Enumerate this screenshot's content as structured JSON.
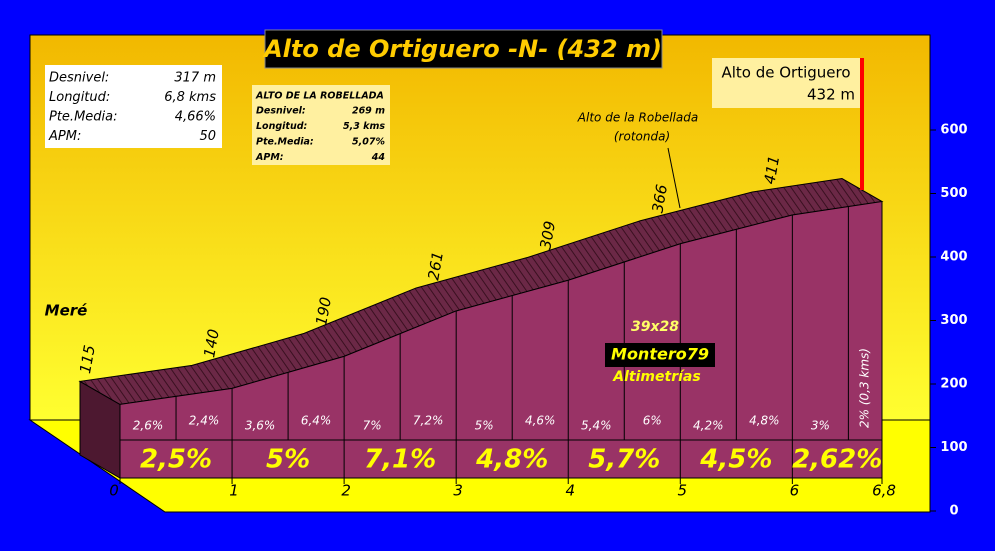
{
  "chart_data": {
    "type": "profile",
    "title": "Alto de Ortiguero -N- (432 m)",
    "x": [
      0,
      1,
      2,
      3,
      4,
      5,
      6,
      6.8
    ],
    "values": [
      115,
      140,
      190,
      261,
      309,
      366,
      411,
      432
    ],
    "value_labels": [
      "115",
      "140",
      "190",
      "261",
      "309",
      "366",
      "411",
      "432 m"
    ],
    "xlim": [
      0,
      6.8
    ],
    "xticks": [
      0,
      1,
      2,
      3,
      4,
      5,
      6,
      {
        "value": 6.8,
        "label": "6,8"
      }
    ],
    "ylim": [
      0,
      600
    ],
    "yticks": [
      0,
      100,
      200,
      300,
      400,
      500,
      600
    ],
    "colors": {
      "face": "#993366",
      "top": "#6b2846",
      "side": "#4d1830",
      "summit_line": "#ff0000"
    },
    "summit_label": "Alto de Ortiguero",
    "segment_gradients": {
      "edges": [
        0,
        0.5,
        1,
        1.5,
        2,
        2.5,
        3,
        3.5,
        4,
        4.5,
        5,
        5.5,
        6,
        6.5,
        6.8
      ],
      "values": [
        2.6,
        2.4,
        3.6,
        6.4,
        7,
        7.2,
        5,
        4.6,
        5.4,
        6,
        4.2,
        4.8,
        3,
        2
      ],
      "value_labels": [
        "2,6%",
        "2,4%",
        "3,6%",
        "6,4%",
        "7%",
        "7,2%",
        "5%",
        "4,6%",
        "5,4%",
        "6%",
        "4,2%",
        "4,8%",
        "3%",
        "2% (0,3 kms)"
      ]
    },
    "km_gradients": {
      "values": [
        2.5,
        5,
        7.1,
        4.8,
        5.7,
        4.5,
        2.62
      ],
      "value_labels": [
        "2,5%",
        "5%",
        "7,1%",
        "4,8%",
        "5,7%",
        "4,5%",
        "2,62%"
      ]
    },
    "annotations": {
      "start": "Meré",
      "robellada": [
        "Alto de la Robellada",
        "(rotonda)"
      ],
      "credits": [
        "39x28",
        "Montero79",
        "Altimetrías"
      ]
    },
    "info_boxes": [
      {
        "rows": [
          [
            "Desnivel:",
            "317 m"
          ],
          [
            "Longitud:",
            "6,8 kms"
          ],
          [
            "Pte.Media:",
            "4,66%"
          ],
          [
            "APM:",
            "50"
          ]
        ]
      },
      {
        "title": "ALTO DE LA ROBELLADA",
        "rows": [
          [
            "Desnivel:",
            "269 m"
          ],
          [
            "Longitud:",
            "5,3 kms"
          ],
          [
            "Pte.Media:",
            "5,07%"
          ],
          [
            "APM:",
            "44"
          ]
        ]
      }
    ]
  }
}
